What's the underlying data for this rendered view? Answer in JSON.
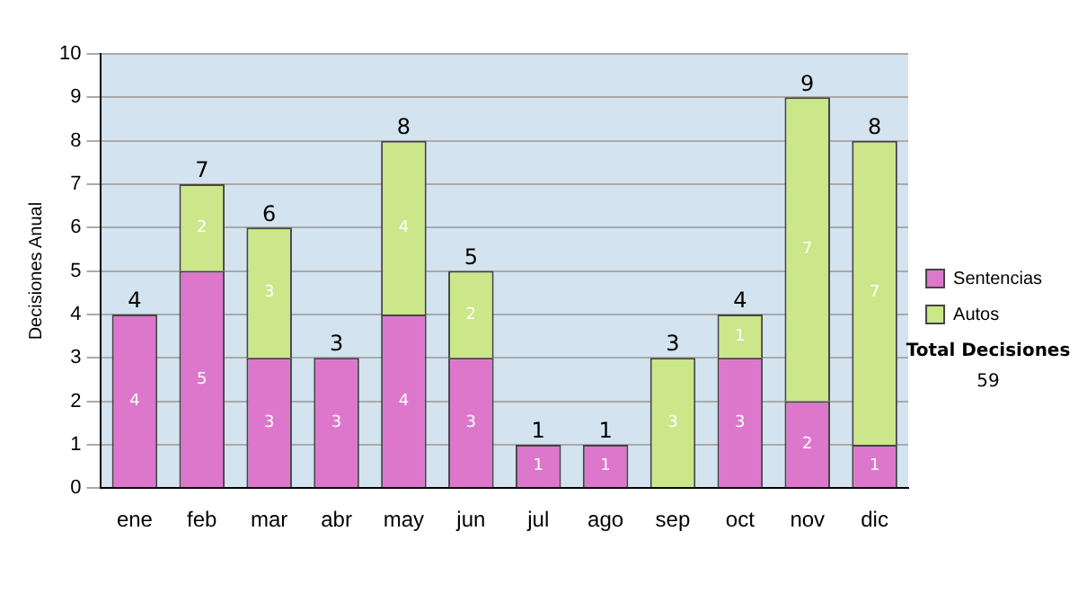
{
  "chart_data": {
    "type": "bar",
    "stacked": true,
    "ylabel": "Decisiones Anual",
    "categories": [
      "ene",
      "feb",
      "mar",
      "abr",
      "may",
      "jun",
      "jul",
      "ago",
      "sep",
      "oct",
      "nov",
      "dic"
    ],
    "series": [
      {
        "name": "Sentencias",
        "color": "#dd77cc",
        "values": [
          4,
          5,
          3,
          3,
          4,
          3,
          1,
          1,
          0,
          3,
          2,
          1
        ],
        "value_labels": [
          "4",
          "5",
          "3",
          "3",
          "4",
          "3",
          "1",
          "1",
          null,
          "3",
          "2",
          "1"
        ]
      },
      {
        "name": "Autos",
        "color": "#cce68a",
        "values": [
          0,
          2,
          3,
          0,
          4,
          2,
          0,
          0,
          3,
          1,
          7,
          7
        ],
        "value_labels": [
          null,
          "2",
          "3",
          null,
          "4",
          "2",
          null,
          null,
          "3",
          "1",
          "7",
          "7"
        ]
      }
    ],
    "totals": [
      "4",
      "7",
      "6",
      "3",
      "8",
      "5",
      "1",
      "1",
      "3",
      "4",
      "9",
      "8"
    ],
    "ylim": [
      0,
      10
    ],
    "yticks": [
      0,
      1,
      2,
      3,
      4,
      5,
      6,
      7,
      8,
      9,
      10
    ],
    "grid": "y",
    "legend": "right",
    "annotations": [
      "Total Decisiones",
      "59"
    ]
  }
}
